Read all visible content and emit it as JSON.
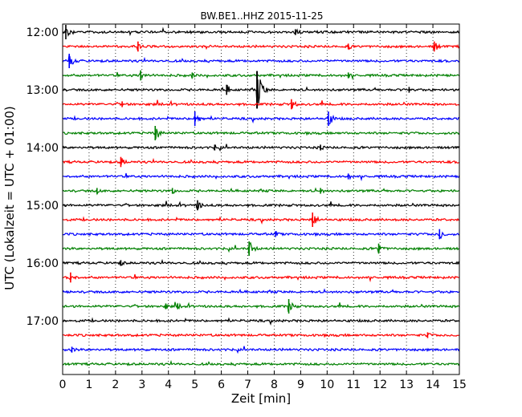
{
  "chart_data": {
    "type": "line",
    "title": "BW.BE1..HHZ 2015-11-25",
    "xlabel": "Zeit  [min]",
    "ylabel": "UTC (Lokalzeit = UTC + 01:00)",
    "xlim": [
      0,
      15
    ],
    "x_ticks": [
      "0",
      "1",
      "2",
      "3",
      "4",
      "5",
      "6",
      "7",
      "8",
      "9",
      "10",
      "11",
      "12",
      "13",
      "14",
      "15"
    ],
    "y_tick_labels": [
      "12:00",
      "13:00",
      "14:00",
      "15:00",
      "16:00",
      "17:00"
    ],
    "trace_interval_minutes": 15,
    "trace_start": "12:00",
    "trace_count": 24,
    "grid": "vertical dotted lines at each minute",
    "colors": {
      "cycle": [
        "#000000",
        "#ff0000",
        "#0000ff",
        "#008000"
      ],
      "grid": "#000000",
      "axis": "#000000"
    },
    "events": [
      {
        "trace": "12:00",
        "minute": 0.12,
        "amplitude": "large"
      },
      {
        "trace": "12:00",
        "minute": 8.8,
        "amplitude": "small"
      },
      {
        "trace": "12:15",
        "minute": 2.85,
        "amplitude": "medium"
      },
      {
        "trace": "12:15",
        "minute": 10.8,
        "amplitude": "small"
      },
      {
        "trace": "12:15",
        "minute": 14.05,
        "amplitude": "medium"
      },
      {
        "trace": "12:30",
        "minute": 0.25,
        "amplitude": "large"
      },
      {
        "trace": "12:45",
        "minute": 2.95,
        "amplitude": "medium"
      },
      {
        "trace": "12:45",
        "minute": 4.9,
        "amplitude": "small"
      },
      {
        "trace": "12:45",
        "minute": 10.8,
        "amplitude": "small"
      },
      {
        "trace": "13:00",
        "minute": 6.2,
        "amplitude": "medium"
      },
      {
        "trace": "13:00",
        "minute": 7.35,
        "amplitude": "very large"
      },
      {
        "trace": "13:00",
        "minute": 13.1,
        "amplitude": "small"
      },
      {
        "trace": "13:15",
        "minute": 2.25,
        "amplitude": "small"
      },
      {
        "trace": "13:15",
        "minute": 8.65,
        "amplitude": "medium"
      },
      {
        "trace": "13:30",
        "minute": 5.0,
        "amplitude": "large"
      },
      {
        "trace": "13:30",
        "minute": 10.05,
        "amplitude": "large"
      },
      {
        "trace": "13:45",
        "minute": 3.5,
        "amplitude": "large"
      },
      {
        "trace": "14:00",
        "minute": 5.75,
        "amplitude": "small"
      },
      {
        "trace": "14:00",
        "minute": 9.75,
        "amplitude": "small"
      },
      {
        "trace": "14:15",
        "minute": 2.2,
        "amplitude": "medium"
      },
      {
        "trace": "14:30",
        "minute": 10.8,
        "amplitude": "small"
      },
      {
        "trace": "14:45",
        "minute": 1.3,
        "amplitude": "small"
      },
      {
        "trace": "14:45",
        "minute": 4.15,
        "amplitude": "small"
      },
      {
        "trace": "14:45",
        "minute": 9.75,
        "amplitude": "small"
      },
      {
        "trace": "15:00",
        "minute": 5.1,
        "amplitude": "medium"
      },
      {
        "trace": "15:15",
        "minute": 9.45,
        "amplitude": "large"
      },
      {
        "trace": "15:30",
        "minute": 8.05,
        "amplitude": "small"
      },
      {
        "trace": "15:30",
        "minute": 14.25,
        "amplitude": "medium"
      },
      {
        "trace": "15:45",
        "minute": 7.05,
        "amplitude": "large"
      },
      {
        "trace": "15:45",
        "minute": 11.95,
        "amplitude": "medium"
      },
      {
        "trace": "16:00",
        "minute": 2.2,
        "amplitude": "small"
      },
      {
        "trace": "16:15",
        "minute": 0.3,
        "amplitude": "medium"
      },
      {
        "trace": "16:45",
        "minute": 3.9,
        "amplitude": "small"
      },
      {
        "trace": "16:45",
        "minute": 4.35,
        "amplitude": "small"
      },
      {
        "trace": "16:45",
        "minute": 8.55,
        "amplitude": "large"
      },
      {
        "trace": "17:15",
        "minute": 13.8,
        "amplitude": "small"
      },
      {
        "trace": "17:30",
        "minute": 0.35,
        "amplitude": "small"
      }
    ]
  }
}
